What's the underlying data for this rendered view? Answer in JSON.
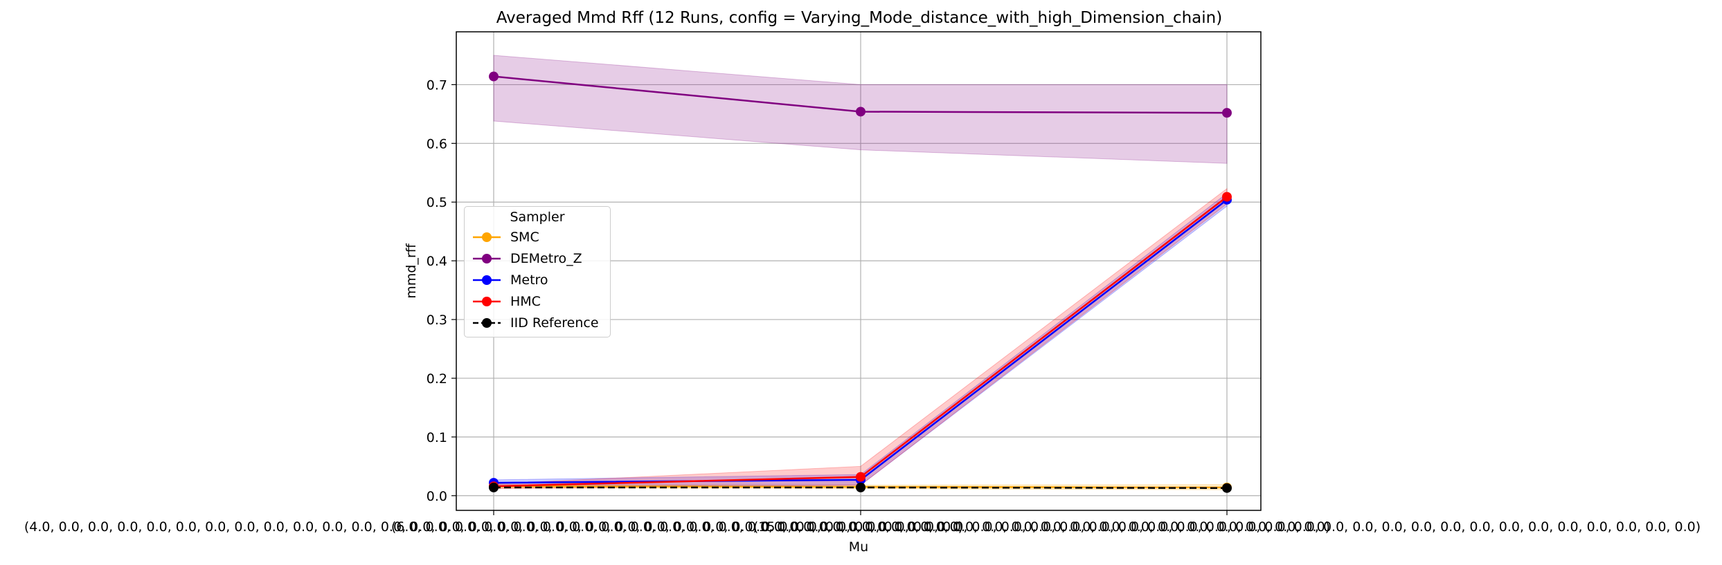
{
  "chart_data": {
    "type": "line",
    "title": "Averaged Mmd Rff (12 Runs, config = Varying_Mode_distance_with_high_Dimension_chain)",
    "xlabel": "Mu",
    "ylabel": "mmd_rff",
    "categories": [
      "(4.0, 0.0, 0.0, 0.0, 0.0, 0.0, 0.0, 0.0, 0.0, 0.0, 0.0, 0.0, 0.0, 0.0, 0.0, 0.0, 0.0, 0.0, 0.0, 0.0, 0.0, 0.0, 0.0, 0.0, 0.0, 0.0, 0.0, 0.0, 0.0, 0.0, 0.0, 0.0)",
      "(6.0, 0.0, 0.0, 0.0, 0.0, 0.0, 0.0, 0.0, 0.0, 0.0, 0.0, 0.0, 0.0, 0.0, 0.0, 0.0, 0.0, 0.0, 0.0, 0.0, 0.0, 0.0, 0.0, 0.0, 0.0, 0.0, 0.0, 0.0, 0.0, 0.0, 0.0, 0.0)",
      "(15.0, 0.0, 0.0, 0.0, 0.0, 0.0, 0.0, 0.0, 0.0, 0.0, 0.0, 0.0, 0.0, 0.0, 0.0, 0.0, 0.0, 0.0, 0.0, 0.0, 0.0, 0.0, 0.0, 0.0, 0.0, 0.0, 0.0, 0.0, 0.0, 0.0, 0.0, 0.0)"
    ],
    "ylim": [
      -0.025,
      0.79
    ],
    "yticks": [
      0.0,
      0.1,
      0.2,
      0.3,
      0.4,
      0.5,
      0.6,
      0.7
    ],
    "ytick_labels": [
      "0.0",
      "0.1",
      "0.2",
      "0.3",
      "0.4",
      "0.5",
      "0.6",
      "0.7"
    ],
    "grid": true,
    "legend": {
      "title": "Sampler",
      "placement": "center-left"
    },
    "series": [
      {
        "name": "SMC",
        "color": "#FFA500",
        "dashed": false,
        "values": [
          0.016,
          0.015,
          0.014
        ],
        "lower": [
          0.013,
          0.012,
          0.01
        ],
        "upper": [
          0.019,
          0.018,
          0.019
        ]
      },
      {
        "name": "DEMetro_Z",
        "color": "#800080",
        "dashed": false,
        "values": [
          0.714,
          0.654,
          0.652
        ],
        "lower": [
          0.638,
          0.589,
          0.566
        ],
        "upper": [
          0.75,
          0.7,
          0.7
        ]
      },
      {
        "name": "Metro",
        "color": "#0000FF",
        "dashed": false,
        "values": [
          0.022,
          0.027,
          0.504
        ],
        "lower": [
          0.016,
          0.018,
          0.493
        ],
        "upper": [
          0.027,
          0.036,
          0.515
        ]
      },
      {
        "name": "HMC",
        "color": "#FF0000",
        "dashed": false,
        "values": [
          0.016,
          0.032,
          0.509
        ],
        "lower": [
          0.012,
          0.018,
          0.497
        ],
        "upper": [
          0.02,
          0.05,
          0.523
        ]
      },
      {
        "name": "IID Reference",
        "color": "#000000",
        "dashed": true,
        "values": [
          0.014,
          0.014,
          0.013
        ],
        "lower": null,
        "upper": null
      }
    ]
  }
}
